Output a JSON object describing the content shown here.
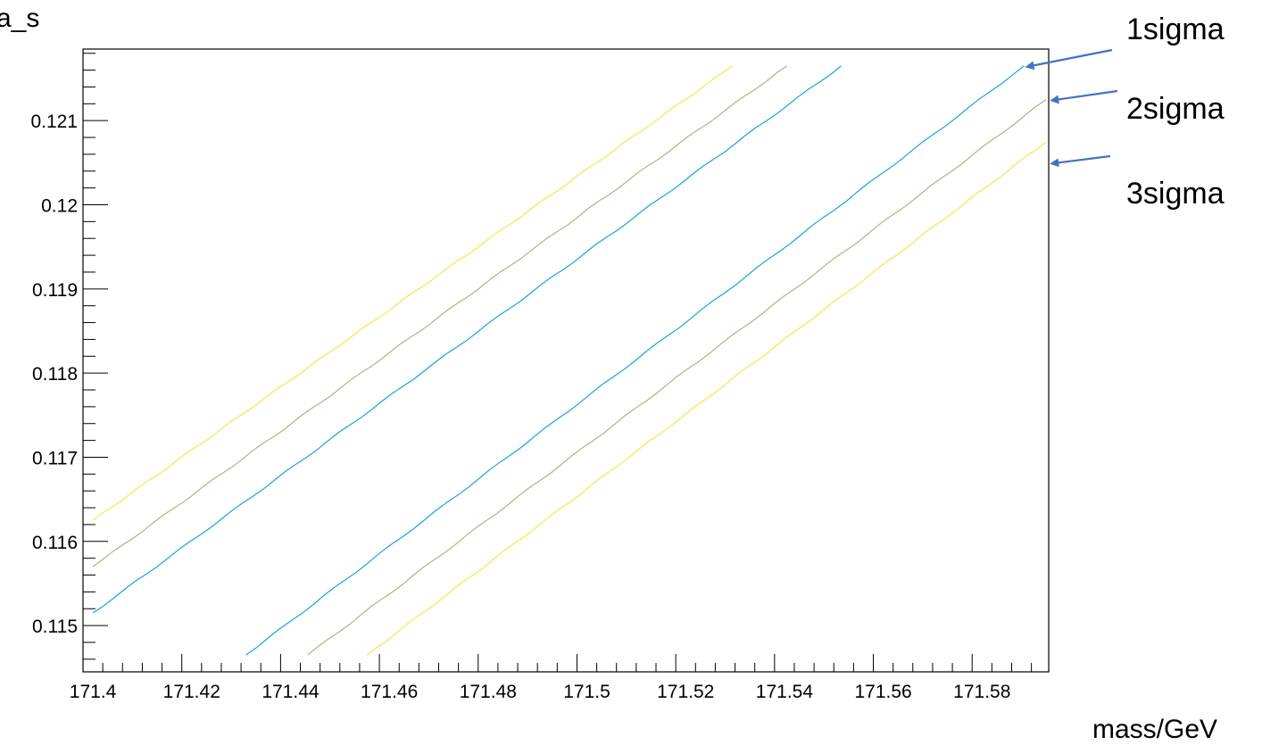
{
  "chart_data": {
    "type": "line",
    "xlabel": "mass/GeV",
    "ylabel": "a_s",
    "xlim": [
      171.398,
      171.5935
    ],
    "ylim": [
      0.11445,
      0.12185
    ],
    "xticks": [
      "171.4",
      "171.42",
      "171.44",
      "171.46",
      "171.48",
      "171.5",
      "171.52",
      "171.54",
      "171.56",
      "171.58"
    ],
    "xtick_values": [
      171.4,
      171.42,
      171.44,
      171.46,
      171.48,
      171.5,
      171.52,
      171.54,
      171.56,
      171.58
    ],
    "yticks": [
      "0.115",
      "0.116",
      "0.117",
      "0.118",
      "0.119",
      "0.12",
      "0.121"
    ],
    "ytick_values": [
      0.115,
      0.116,
      0.117,
      0.118,
      0.119,
      0.12,
      0.121
    ],
    "grid": false,
    "series": [
      {
        "color": "#1aa3df",
        "x": [
          171.4,
          171.5515
        ],
        "y": [
          0.11515,
          0.12165
        ]
      },
      {
        "color": "#1aa3df",
        "x": [
          171.431,
          171.5885
        ],
        "y": [
          0.11465,
          0.12165
        ]
      },
      {
        "color": "#a8b884",
        "x": [
          171.4,
          171.5405
        ],
        "y": [
          0.1157,
          0.12165
        ]
      },
      {
        "color": "#a8b884",
        "x": [
          171.4435,
          171.593
        ],
        "y": [
          0.11465,
          0.12125
        ]
      },
      {
        "color": "#f2e84a",
        "x": [
          171.4,
          171.5295
        ],
        "y": [
          0.11625,
          0.12165
        ]
      },
      {
        "color": "#f2e84a",
        "x": [
          171.4555,
          171.593
        ],
        "y": [
          0.11465,
          0.12075
        ]
      }
    ],
    "annotations": [
      {
        "text": "1sigma",
        "x": 171.588,
        "y": 0.12165
      },
      {
        "text": "2sigma",
        "x": 171.593,
        "y": 0.12125
      },
      {
        "text": "3sigma",
        "x": 171.593,
        "y": 0.1205
      }
    ]
  },
  "colors": {
    "arrow": "#4472c4",
    "axis": "#000000"
  }
}
